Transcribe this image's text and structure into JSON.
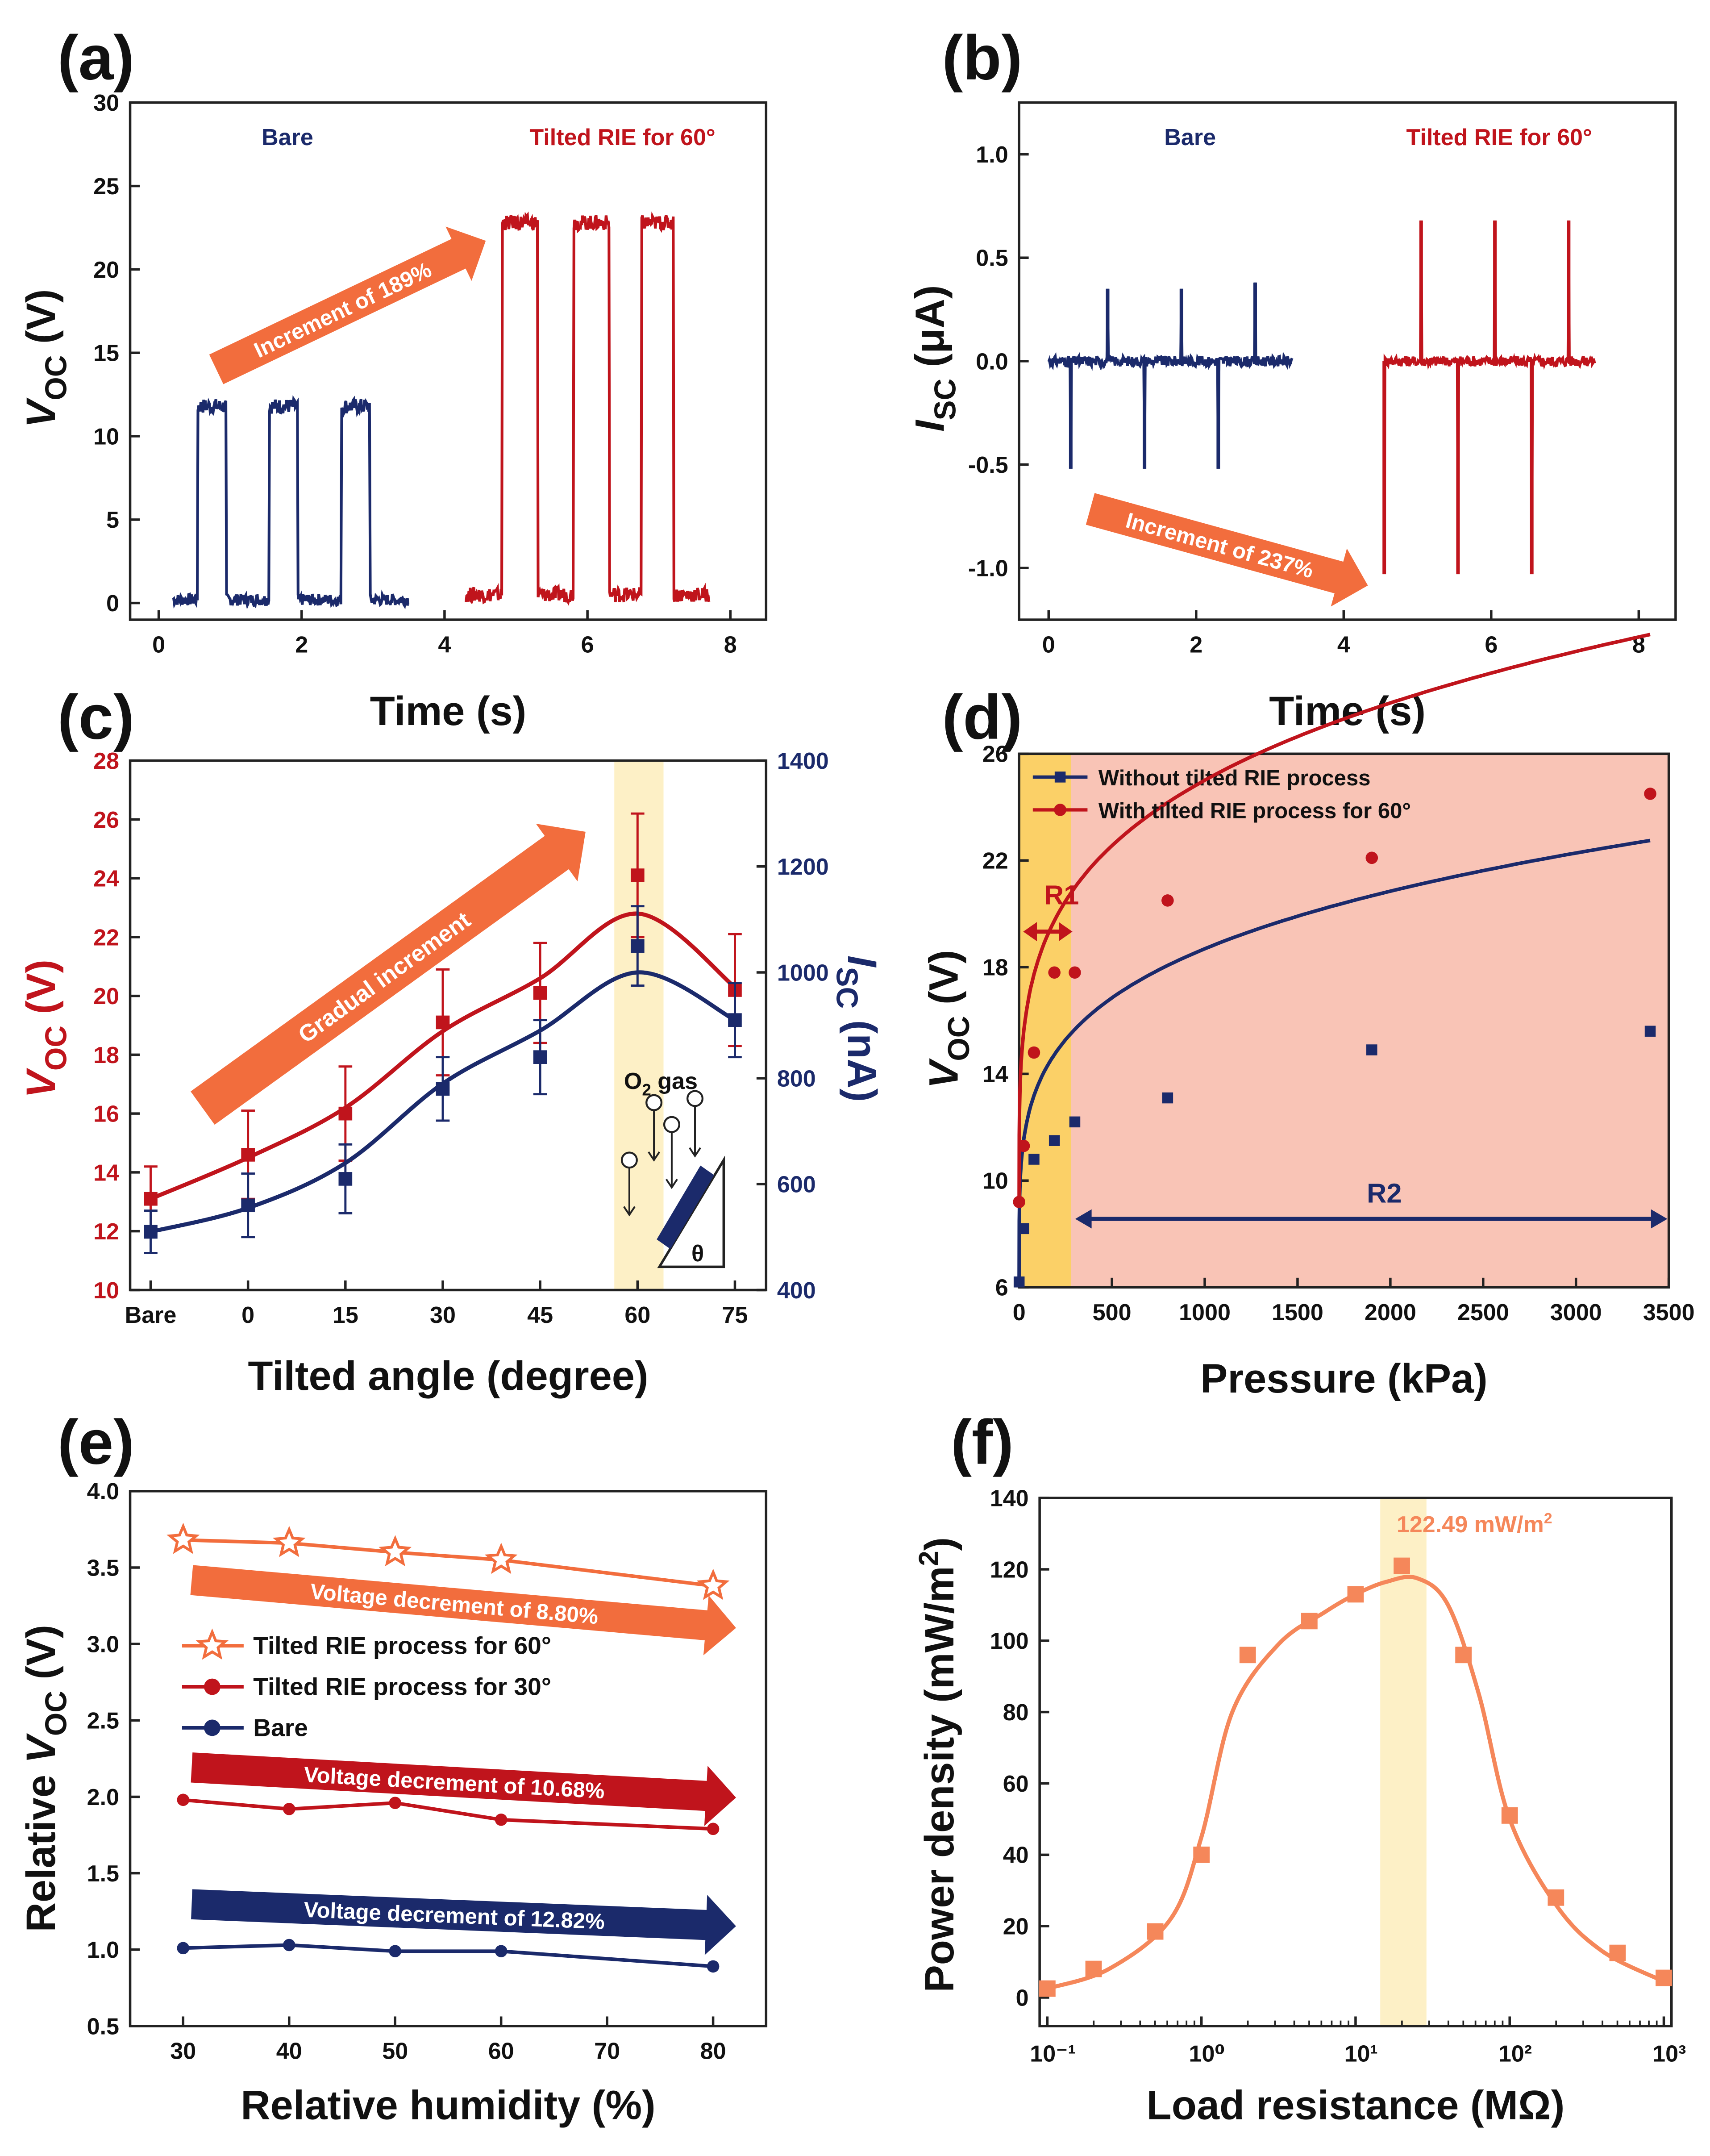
{
  "colors": {
    "navy": "#1b2a6b",
    "red": "#c0141c",
    "orange": "#f26d3d",
    "orangeLight": "#f5875a",
    "shade": "#fdf0c6",
    "r1": "#fbd067",
    "r2": "#f9c4b6",
    "text": "#111111"
  },
  "chart_data": [
    {
      "panel": "(a)",
      "type": "line",
      "xlabel": "Time (s)",
      "ylabel": "VOC (V)",
      "xlim": [
        -0.4,
        8.5
      ],
      "ylim": [
        -1,
        30
      ],
      "xticks": [
        0,
        2,
        4,
        6,
        8
      ],
      "yticks": [
        0,
        5,
        10,
        15,
        20,
        25,
        30
      ],
      "series": [
        {
          "name": "Bare",
          "color": "navy",
          "base": 0.2,
          "high": 11.8,
          "pulses": [
            [
              0.55,
              0.95
            ],
            [
              1.55,
              1.95
            ],
            [
              2.55,
              2.95
            ]
          ],
          "range": [
            0.2,
            3.5
          ]
        },
        {
          "name": "Tilted RIE for 60°",
          "color": "red",
          "base": 0.5,
          "high": 22.8,
          "pulses": [
            [
              4.8,
              5.3
            ],
            [
              5.8,
              6.3
            ],
            [
              6.75,
              7.2
            ]
          ],
          "range": [
            4.3,
            7.7
          ]
        }
      ],
      "annotation": "Increment of 189%"
    },
    {
      "panel": "(b)",
      "type": "line",
      "xlabel": "Time (s)",
      "ylabel": "ISC (μA)",
      "xlim": [
        -0.4,
        8.5
      ],
      "ylim": [
        -1.25,
        1.25
      ],
      "xticks": [
        0,
        2,
        4,
        6,
        8
      ],
      "yticks": [
        -1.0,
        -0.5,
        0.0,
        0.5,
        1.0
      ],
      "series": [
        {
          "name": "Bare",
          "color": "navy",
          "range": [
            0,
            3.3
          ],
          "spikes": [
            [
              0.3,
              -0.52
            ],
            [
              0.8,
              0.35
            ],
            [
              1.3,
              -0.52
            ],
            [
              1.8,
              0.35
            ],
            [
              2.3,
              -0.52
            ],
            [
              2.8,
              0.38
            ]
          ]
        },
        {
          "name": "Tilted RIE for 60°",
          "color": "red",
          "range": [
            4.55,
            7.4
          ],
          "spikes": [
            [
              4.55,
              -1.03
            ],
            [
              5.05,
              0.68
            ],
            [
              5.55,
              -1.03
            ],
            [
              6.05,
              0.68
            ],
            [
              6.55,
              -1.03
            ],
            [
              7.05,
              0.68
            ]
          ]
        }
      ],
      "annotation": "Increment of 237%"
    },
    {
      "panel": "(c)",
      "type": "line",
      "xlabel": "Tilted angle (degree)",
      "ylabel": "VOC (V)",
      "ylabel2": "ISC (nA)",
      "categories": [
        "Bare",
        "0",
        "15",
        "30",
        "45",
        "60",
        "75"
      ],
      "ylim": [
        10,
        28
      ],
      "ylim2": [
        400,
        1400
      ],
      "yticks": [
        10,
        12,
        14,
        16,
        18,
        20,
        22,
        24,
        26,
        28
      ],
      "yticks2": [
        400,
        600,
        800,
        1000,
        1200,
        1400
      ],
      "series": [
        {
          "name": "VOC",
          "color": "red",
          "values": [
            13.1,
            14.6,
            16.0,
            19.1,
            20.1,
            24.1,
            20.2
          ],
          "errors": [
            1.1,
            1.5,
            1.6,
            1.8,
            1.7,
            2.1,
            1.9
          ],
          "fit": [
            13.1,
            14.5,
            16.2,
            18.8,
            20.6,
            22.8,
            20.3
          ]
        },
        {
          "name": "ISC",
          "color": "navy",
          "values": [
            510,
            560,
            610,
            780,
            840,
            1050,
            910
          ],
          "errors": [
            40,
            60,
            65,
            60,
            70,
            75,
            70
          ],
          "fit": [
            510,
            555,
            640,
            790,
            890,
            1000,
            910
          ]
        }
      ],
      "annotation": "Gradual increment",
      "inset_label": "O₂ gas",
      "inset_angle": "θ"
    },
    {
      "panel": "(d)",
      "type": "line",
      "xlabel": "Pressure (kPa)",
      "ylabel": "VOC (V)",
      "xlim": [
        0,
        3500
      ],
      "ylim": [
        6,
        26
      ],
      "xticks": [
        0,
        500,
        1000,
        1500,
        2000,
        2500,
        3000,
        3500
      ],
      "yticks": [
        6,
        10,
        14,
        18,
        22,
        26
      ],
      "series": [
        {
          "name": "Without tilted RIE process",
          "color": "navy",
          "x": [
            0,
            25,
            80,
            190,
            300,
            800,
            1900,
            3400
          ],
          "y": [
            6.2,
            8.2,
            10.8,
            11.5,
            12.2,
            13.1,
            14.9,
            15.6
          ]
        },
        {
          "name": "With tilted RIE process for 60°",
          "color": "red",
          "x": [
            0,
            25,
            80,
            190,
            300,
            800,
            1900,
            3400
          ],
          "y": [
            9.2,
            11.3,
            14.8,
            17.8,
            17.8,
            20.5,
            22.1,
            24.5
          ]
        }
      ],
      "regions": [
        {
          "label": "R1",
          "from": 0,
          "to": 280
        },
        {
          "label": "R2",
          "from": 280,
          "to": 3500
        }
      ]
    },
    {
      "panel": "(e)",
      "type": "line",
      "xlabel": "Relative humidity (%)",
      "ylabel": "Relative VOC (V)",
      "xlim": [
        25,
        85
      ],
      "ylim": [
        0.5,
        4.0
      ],
      "xticks": [
        30,
        40,
        50,
        60,
        70,
        80
      ],
      "yticks": [
        0.5,
        1.0,
        1.5,
        2.0,
        2.5,
        3.0,
        3.5,
        4.0
      ],
      "x": [
        30,
        40,
        50,
        60,
        80
      ],
      "series": [
        {
          "name": "Tilted RIE process for 60°",
          "color": "orange",
          "marker": "star",
          "values": [
            3.68,
            3.66,
            3.6,
            3.55,
            3.38
          ]
        },
        {
          "name": "Tilted RIE process for 30°",
          "color": "red",
          "marker": "circle",
          "values": [
            1.98,
            1.92,
            1.96,
            1.85,
            1.79
          ]
        },
        {
          "name": "Bare",
          "color": "navy",
          "marker": "circle",
          "values": [
            1.01,
            1.03,
            0.99,
            0.99,
            0.89
          ]
        }
      ],
      "annotations": [
        "Voltage decrement of 8.80%",
        "Voltage decrement of 10.68%",
        "Voltage decrement of 12.82%"
      ]
    },
    {
      "panel": "(f)",
      "type": "scatter",
      "xlabel": "Load resistance (MΩ)",
      "ylabel": "Power density (mW/m²)",
      "xscale": "log",
      "xlim_log10": [
        -1.05,
        3.05
      ],
      "ylim": [
        -8,
        140
      ],
      "xticks": [
        "10⁻¹",
        "10⁰",
        "10¹",
        "10²",
        "10³"
      ],
      "yticks": [
        0,
        20,
        40,
        60,
        80,
        100,
        120,
        140
      ],
      "x_log10": [
        -1.0,
        -0.7,
        -0.3,
        0.0,
        0.3,
        0.7,
        1.0,
        1.3,
        1.7,
        2.0,
        2.3,
        2.7,
        3.0
      ],
      "y": [
        2.5,
        8,
        18.5,
        40,
        96,
        105.5,
        113,
        121,
        96,
        51,
        28,
        12.5,
        5.5
      ],
      "fit_log10": [
        -1.0,
        -0.6,
        -0.2,
        0.0,
        0.2,
        0.5,
        0.8,
        1.0,
        1.2,
        1.4,
        1.6,
        1.8,
        2.0,
        2.3,
        2.6,
        3.0
      ],
      "fit_y": [
        2.5,
        8,
        22,
        45,
        80,
        99,
        108,
        113,
        116.5,
        117.5,
        110,
        85,
        50,
        26,
        13,
        4.5
      ],
      "annotation": "122.49 mW/m²"
    }
  ]
}
